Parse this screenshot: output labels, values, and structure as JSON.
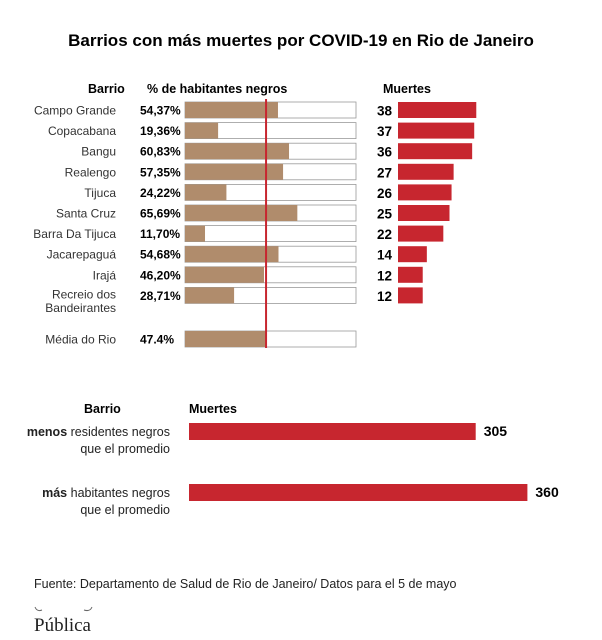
{
  "chart_data": [
    {
      "type": "bar",
      "title": "Barrios con más muertes por COVID-19 en Rio de Janeiro",
      "column_headers": {
        "neighborhood": "Barrio",
        "percent": "% de habitantes negros",
        "deaths": "Muertes"
      },
      "percent_range": [
        0,
        100
      ],
      "rows": [
        {
          "label": [
            "Campo Grande"
          ],
          "pct": 54.37,
          "pct_label": "54,37%",
          "deaths": 38
        },
        {
          "label": [
            "Copacabana"
          ],
          "pct": 19.36,
          "pct_label": "19,36%",
          "deaths": 37
        },
        {
          "label": [
            "Bangu"
          ],
          "pct": 60.83,
          "pct_label": "60,83%",
          "deaths": 36
        },
        {
          "label": [
            "Realengo"
          ],
          "pct": 57.35,
          "pct_label": "57,35%",
          "deaths": 27
        },
        {
          "label": [
            "Tijuca"
          ],
          "pct": 24.22,
          "pct_label": "24,22%",
          "deaths": 26
        },
        {
          "label": [
            "Santa Cruz"
          ],
          "pct": 65.69,
          "pct_label": "65,69%",
          "deaths": 25
        },
        {
          "label": [
            "Barra Da Tijuca"
          ],
          "pct": 11.7,
          "pct_label": "11,70%",
          "deaths": 22
        },
        {
          "label": [
            "Jacarepaguá"
          ],
          "pct": 54.68,
          "pct_label": "54,68%",
          "deaths": 14
        },
        {
          "label": [
            "Irajá"
          ],
          "pct": 46.2,
          "pct_label": "46,20%",
          "deaths": 12
        },
        {
          "label": [
            "Recreio dos",
            "Bandeirantes"
          ],
          "pct": 28.71,
          "pct_label": "28,71%",
          "deaths": 12
        }
      ],
      "average": {
        "label": "Média do Rio",
        "pct": 47.4,
        "pct_label": "47.4%"
      }
    },
    {
      "type": "bar",
      "column_headers": {
        "group": "Barrio",
        "deaths": "Muertes"
      },
      "groups": [
        {
          "bold": "menos",
          "rest": " residentes negros",
          "line2": "que el promedio",
          "deaths": 305
        },
        {
          "bold": "más",
          "rest": " habitantes negros",
          "line2": "que el promedio",
          "deaths": 360
        }
      ]
    }
  ],
  "source": "Fuente: Departamento de Salud de Rio de Janeiro/ Datos para el 5 de mayo",
  "logo": "Pública",
  "colors": {
    "percent_bar": "#b08c6c",
    "death_bar": "#c7262f",
    "average_line": "#c7262f",
    "bar_outline": "#9a9a9a"
  }
}
